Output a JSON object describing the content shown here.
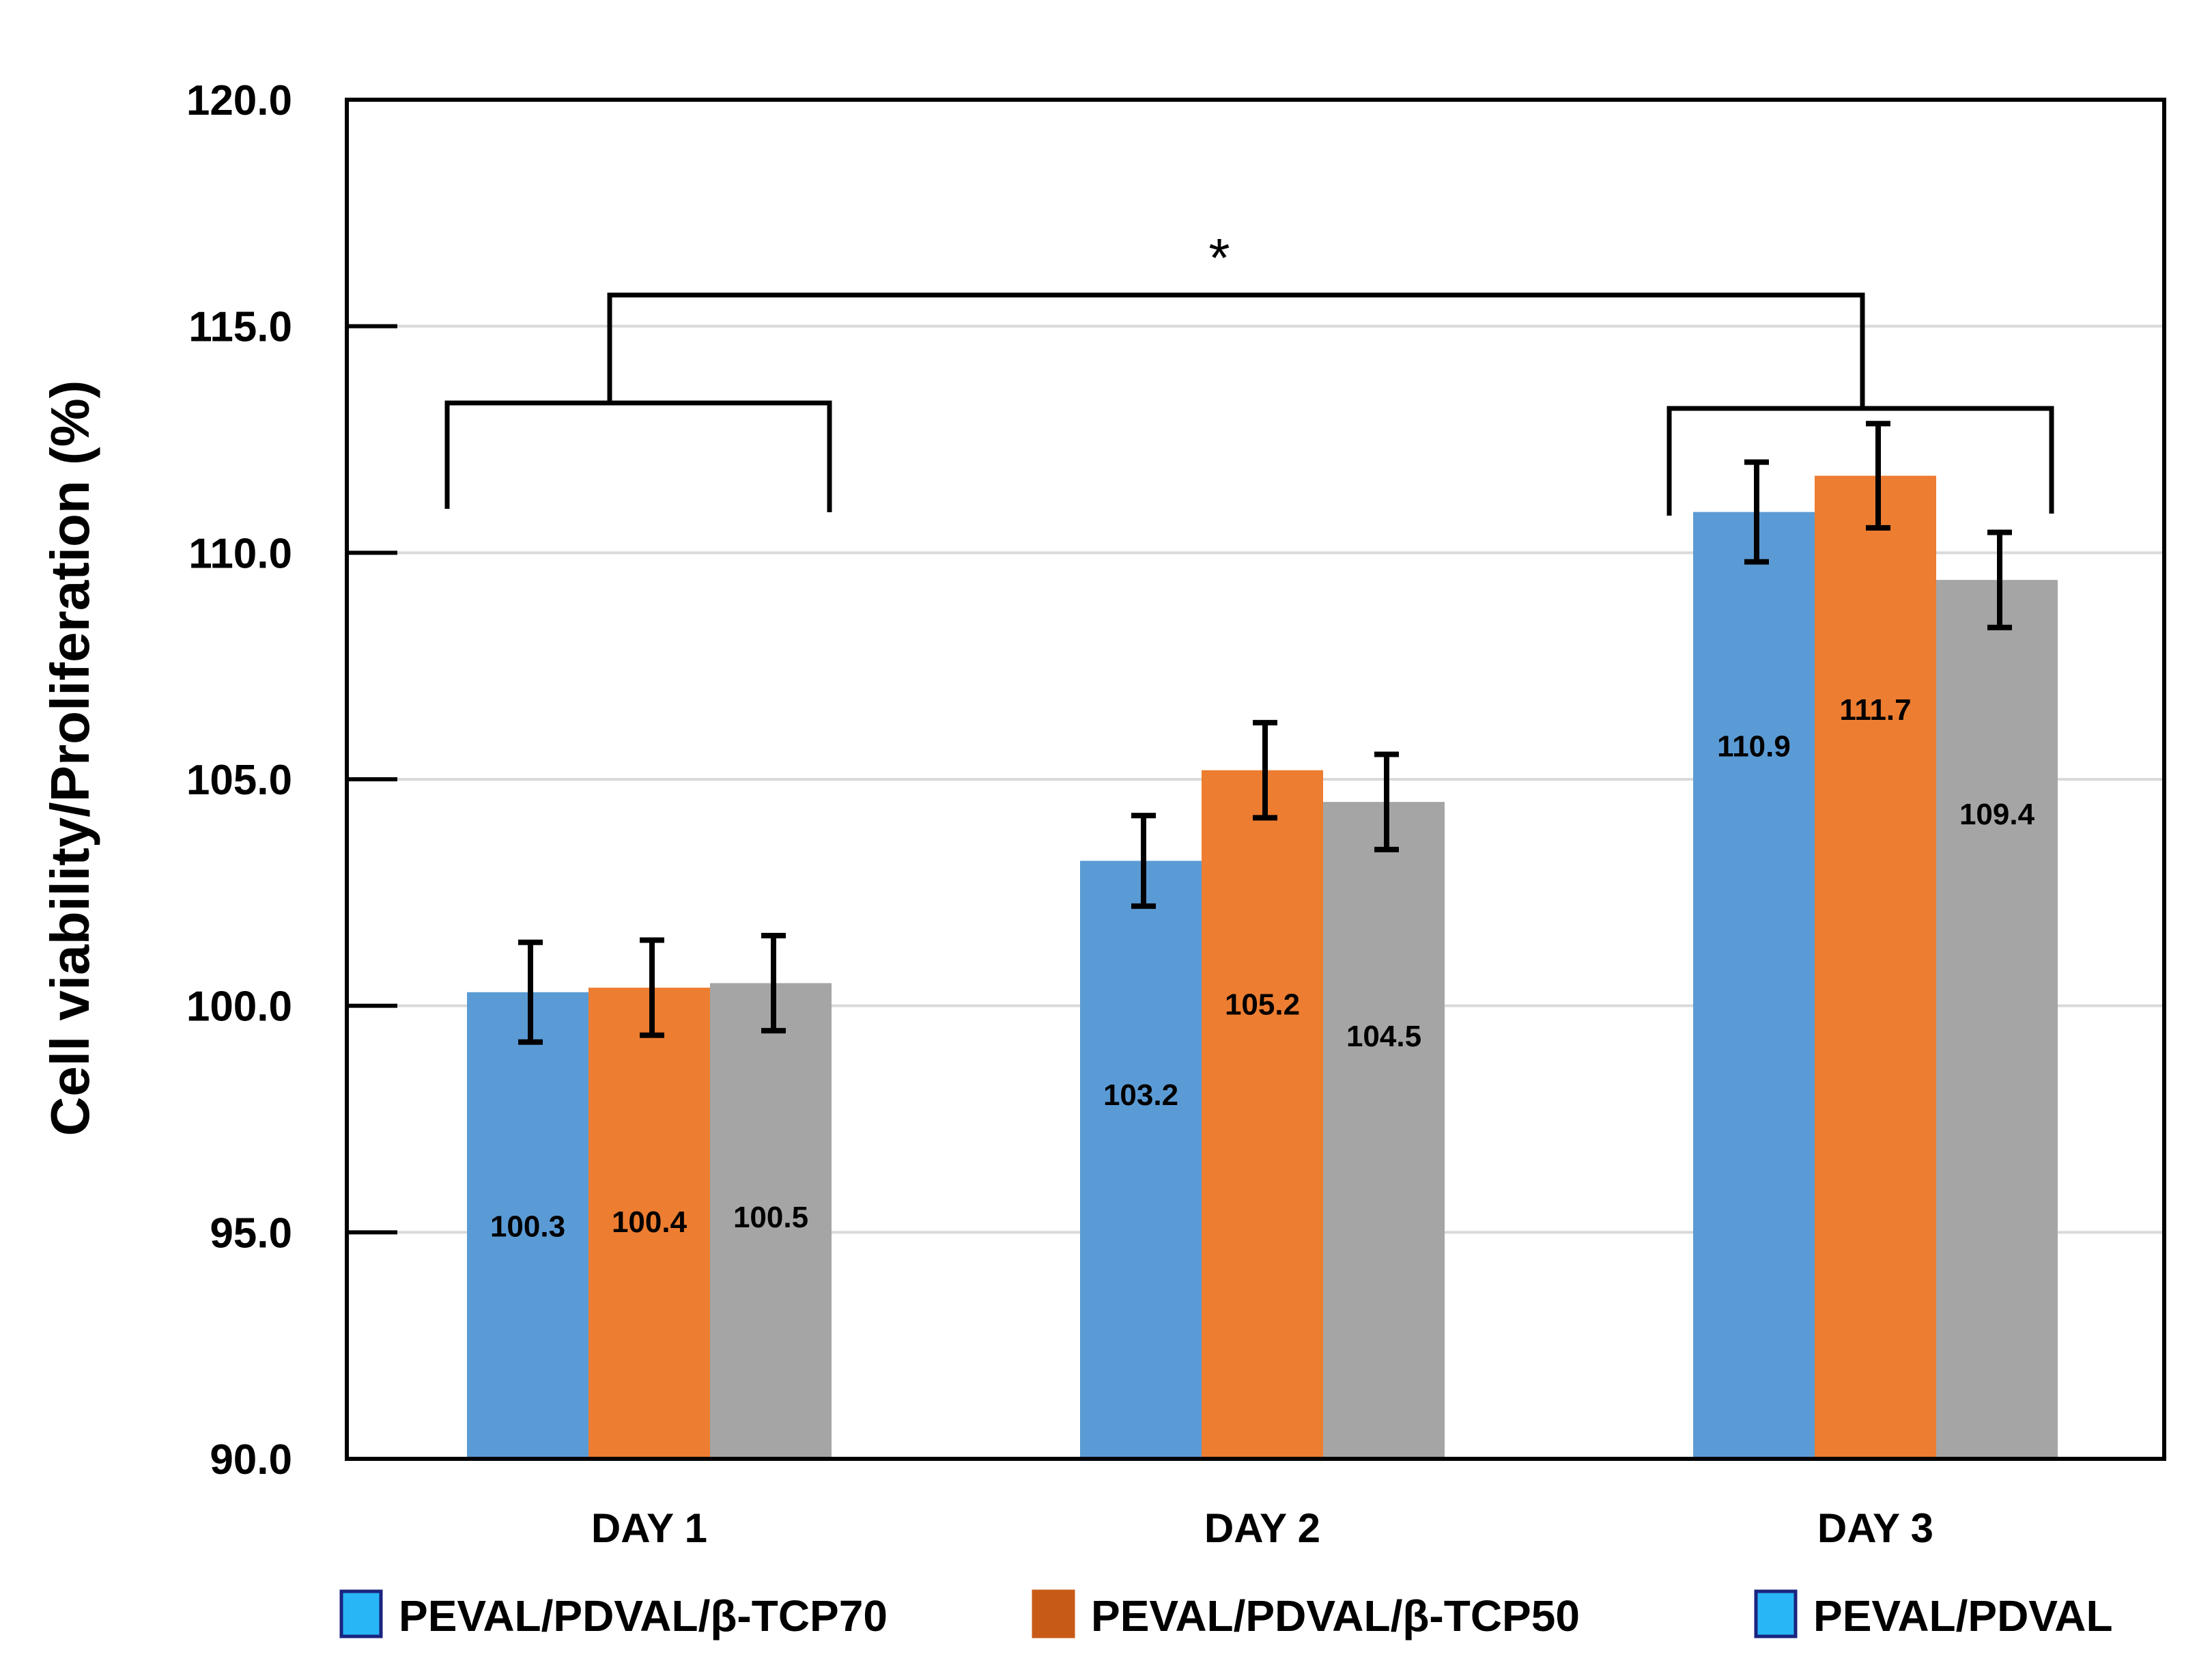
{
  "chart_data": {
    "type": "bar",
    "title": "",
    "xlabel": "",
    "ylabel": "Cell viability/Proliferation (%)",
    "ylim": [
      90,
      120
    ],
    "yticks": [
      "90.0",
      "95.0",
      "100.0",
      "105.0",
      "110.0",
      "115.0",
      "120.0"
    ],
    "categories": [
      "DAY 1",
      "DAY 2",
      "DAY 3"
    ],
    "series": [
      {
        "name": "PEVAL/PDVAL/β-TCP70",
        "color": "#5b9bd5",
        "values": [
          100.3,
          103.2,
          110.9
        ],
        "labels": [
          "100.3",
          "103.2",
          "110.9"
        ],
        "errors": [
          1.1,
          1.0,
          1.1
        ]
      },
      {
        "name": "PEVAL/PDVAL/β-TCP50",
        "color": "#ed7d31",
        "values": [
          100.4,
          105.2,
          111.7
        ],
        "labels": [
          "100.4",
          "105.2",
          "111.7"
        ],
        "errors": [
          1.05,
          1.05,
          1.15
        ]
      },
      {
        "name": "PEVAL/PDVAL",
        "color": "#a5a5a5",
        "values": [
          100.5,
          104.5,
          109.4
        ],
        "labels": [
          "100.5",
          "104.5",
          "109.4"
        ],
        "errors": [
          1.05,
          1.05,
          1.05
        ]
      }
    ],
    "legend": [
      {
        "label": "PEVAL/PDVAL/β-TCP70",
        "swatch": "#29b6f6",
        "border": "#1a237e"
      },
      {
        "label": "PEVAL/PDVAL/β-TCP50",
        "swatch": "#c85a17",
        "border": "#c85a17"
      },
      {
        "label": "PEVAL/PDVAL",
        "swatch": "#29b6f6",
        "border": "#1a237e"
      }
    ],
    "legend_position": "bottom",
    "grid": true,
    "significance": {
      "between": [
        "DAY 1",
        "DAY 3"
      ],
      "symbol": "*"
    }
  }
}
